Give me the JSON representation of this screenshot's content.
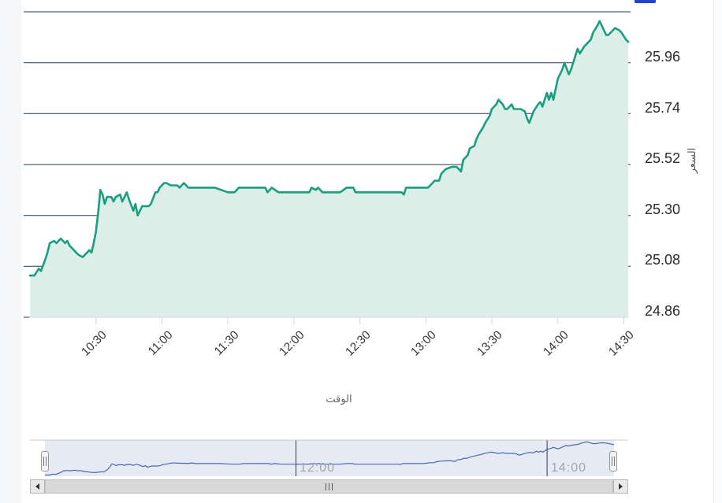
{
  "artifacts": {
    "partial_blue_element_color": "#2244d0"
  },
  "chart_data": {
    "type": "area",
    "title": "",
    "xlabel": "الوقت",
    "ylabel": "السعر",
    "grid": true,
    "legend": "none",
    "y_axis_side": "right",
    "x_tick_labels": [
      "10:30",
      "11:00",
      "11:30",
      "12:00",
      "12:30",
      "13:00",
      "13:30",
      "14:00",
      "14:30"
    ],
    "x_tick_minutes": [
      30,
      60,
      90,
      120,
      150,
      180,
      210,
      240,
      270
    ],
    "y_tick_labels": [
      "25.96",
      "25.74",
      "25.52",
      "25.30",
      "25.08",
      "24.86"
    ],
    "y_grid_values": [
      26.18,
      25.96,
      25.74,
      25.52,
      25.3,
      25.08,
      24.86
    ],
    "ylim": [
      24.86,
      26.18
    ],
    "x_unit": "minutes_after_10:00",
    "x_start_time": "10:00",
    "x_end_time": "14:32",
    "xlim_minutes": [
      0,
      272
    ],
    "colors": {
      "grid": "#2b3a4f",
      "axis": "#ccd6eb",
      "tick_label": "#333333",
      "y_label": "#2b2b2b"
    },
    "series": [
      {
        "name": "السعر",
        "color": "#1a9e80",
        "fill_color": "#ddeee8",
        "points_t_v": [
          [
            0,
            25.04
          ],
          [
            2,
            25.04
          ],
          [
            4,
            25.07
          ],
          [
            5,
            25.06
          ],
          [
            7,
            25.11
          ],
          [
            8,
            25.14
          ],
          [
            9,
            25.18
          ],
          [
            11,
            25.19
          ],
          [
            12,
            25.18
          ],
          [
            14,
            25.2
          ],
          [
            15,
            25.19
          ],
          [
            16,
            25.18
          ],
          [
            17,
            25.19
          ],
          [
            18,
            25.17
          ],
          [
            19,
            25.16
          ],
          [
            21,
            25.14
          ],
          [
            22,
            25.13
          ],
          [
            24,
            25.12
          ],
          [
            25,
            25.13
          ],
          [
            27,
            25.15
          ],
          [
            28,
            25.14
          ],
          [
            29,
            25.18
          ],
          [
            30,
            25.23
          ],
          [
            31,
            25.31
          ],
          [
            32,
            25.41
          ],
          [
            33,
            25.39
          ],
          [
            34,
            25.35
          ],
          [
            35,
            25.38
          ],
          [
            37,
            25.38
          ],
          [
            38,
            25.36
          ],
          [
            39,
            25.38
          ],
          [
            41,
            25.39
          ],
          [
            42,
            25.36
          ],
          [
            44,
            25.4
          ],
          [
            45,
            25.37
          ],
          [
            47,
            25.32
          ],
          [
            48,
            25.35
          ],
          [
            49,
            25.3
          ],
          [
            51,
            25.34
          ],
          [
            54,
            25.34
          ],
          [
            55,
            25.35
          ],
          [
            57,
            25.4
          ],
          [
            58,
            25.4
          ],
          [
            59,
            25.42
          ],
          [
            61,
            25.44
          ],
          [
            62,
            25.44
          ],
          [
            64,
            25.43
          ],
          [
            65,
            25.43
          ],
          [
            67,
            25.43
          ],
          [
            68,
            25.42
          ],
          [
            70,
            25.44
          ],
          [
            71,
            25.43
          ],
          [
            72,
            25.42
          ],
          [
            78,
            25.42
          ],
          [
            84,
            25.42
          ],
          [
            87,
            25.41
          ],
          [
            90,
            25.4
          ],
          [
            93,
            25.4
          ],
          [
            95,
            25.42
          ],
          [
            104,
            25.42
          ],
          [
            107,
            25.42
          ],
          [
            108,
            25.4
          ],
          [
            110,
            25.42
          ],
          [
            113,
            25.4
          ],
          [
            124,
            25.4
          ],
          [
            127,
            25.4
          ],
          [
            128,
            25.42
          ],
          [
            130,
            25.41
          ],
          [
            131,
            25.42
          ],
          [
            133,
            25.4
          ],
          [
            141,
            25.4
          ],
          [
            144,
            25.42
          ],
          [
            147,
            25.42
          ],
          [
            148,
            25.4
          ],
          [
            166,
            25.4
          ],
          [
            169,
            25.4
          ],
          [
            170,
            25.39
          ],
          [
            171,
            25.42
          ],
          [
            179,
            25.42
          ],
          [
            181,
            25.42
          ],
          [
            183,
            25.44
          ],
          [
            184,
            25.45
          ],
          [
            186,
            25.45
          ],
          [
            187,
            25.48
          ],
          [
            189,
            25.5
          ],
          [
            192,
            25.51
          ],
          [
            194,
            25.51
          ],
          [
            196,
            25.49
          ],
          [
            197,
            25.54
          ],
          [
            199,
            25.56
          ],
          [
            200,
            25.59
          ],
          [
            202,
            25.6
          ],
          [
            203,
            25.63
          ],
          [
            204,
            25.65
          ],
          [
            206,
            25.68
          ],
          [
            207,
            25.7
          ],
          [
            209,
            25.73
          ],
          [
            210,
            25.76
          ],
          [
            212,
            25.78
          ],
          [
            213,
            25.8
          ],
          [
            215,
            25.78
          ],
          [
            216,
            25.76
          ],
          [
            217,
            25.76
          ],
          [
            219,
            25.78
          ],
          [
            220,
            25.76
          ],
          [
            223,
            25.76
          ],
          [
            225,
            25.75
          ],
          [
            226,
            25.72
          ],
          [
            227,
            25.7
          ],
          [
            229,
            25.75
          ],
          [
            231,
            25.78
          ],
          [
            232,
            25.79
          ],
          [
            233,
            25.77
          ],
          [
            235,
            25.83
          ],
          [
            236,
            25.8
          ],
          [
            237,
            25.83
          ],
          [
            238,
            25.8
          ],
          [
            240,
            25.89
          ],
          [
            242,
            25.93
          ],
          [
            243,
            25.96
          ],
          [
            245,
            25.91
          ],
          [
            246,
            25.93
          ],
          [
            248,
            25.99
          ],
          [
            249,
            26.02
          ],
          [
            250,
            26.0
          ],
          [
            252,
            26.03
          ],
          [
            253,
            26.04
          ],
          [
            255,
            26.06
          ],
          [
            256,
            26.09
          ],
          [
            258,
            26.12
          ],
          [
            259,
            26.14
          ],
          [
            261,
            26.1
          ],
          [
            262,
            26.08
          ],
          [
            263,
            26.08
          ],
          [
            265,
            26.1
          ],
          [
            266,
            26.11
          ],
          [
            268,
            26.1
          ],
          [
            269,
            26.09
          ],
          [
            271,
            26.06
          ],
          [
            272,
            26.05
          ]
        ]
      }
    ],
    "navigator": {
      "tick_labels": [
        "12:00",
        "14:00"
      ],
      "tick_minutes": [
        120,
        240
      ],
      "line_color": "#4a69ad",
      "mask_color": "rgba(96,126,191,0.16)",
      "ylim": [
        25.0,
        26.2
      ],
      "selected_range_minutes": [
        0,
        272
      ]
    }
  }
}
